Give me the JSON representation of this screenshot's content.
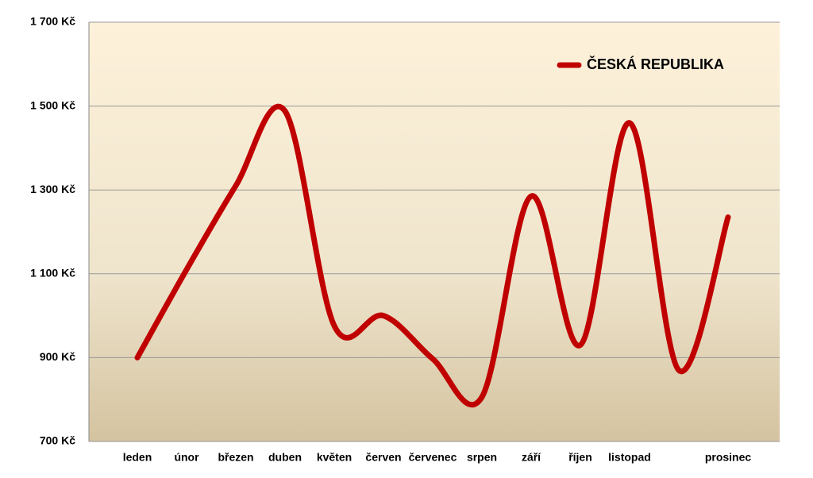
{
  "chart_data": {
    "type": "line",
    "categories": [
      "leden",
      "únor",
      "březen",
      "duben",
      "květen",
      "červen",
      "červenec",
      "srpen",
      "září",
      "říjen",
      "listopad",
      null,
      "prosinec"
    ],
    "series": [
      {
        "name": "ČESKÁ REPUBLIKA",
        "color": "#c00000",
        "values": [
          900,
          1110,
          1310,
          1488,
          976,
          1000,
          897,
          806,
          1285,
          930,
          1460,
          870,
          1235
        ]
      }
    ],
    "ylim": [
      700,
      1700
    ],
    "yticks": [
      {
        "value": 700,
        "label": "700 Kč"
      },
      {
        "value": 900,
        "label": "900 Kč"
      },
      {
        "value": 1100,
        "label": "1 100 Kč"
      },
      {
        "value": 1300,
        "label": "1 300 Kč"
      },
      {
        "value": 1500,
        "label": "1 500 Kč"
      },
      {
        "value": 1700,
        "label": "1 700 Kč"
      }
    ],
    "grid": true,
    "smooth": true,
    "legend": "top-right"
  }
}
